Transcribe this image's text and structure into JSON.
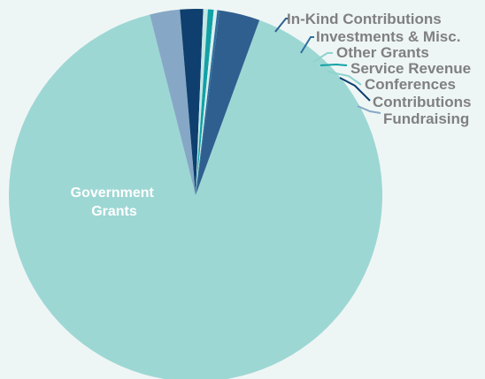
{
  "chart_data": {
    "type": "pie",
    "title": "",
    "start_angle_deg": 20,
    "slices": [
      {
        "label": "Government Grants",
        "value": 90.5,
        "color": "#9dd7d4"
      },
      {
        "label": "Fundraising",
        "value": 2.6,
        "color": "#86a8c6"
      },
      {
        "label": "Contributions",
        "value": 2.0,
        "color": "#0e3f6e"
      },
      {
        "label": "Conferences",
        "value": 0.4,
        "color": "#c2e7e4"
      },
      {
        "label": "Service Revenue",
        "value": 0.5,
        "color": "#11a1a6"
      },
      {
        "label": "Other Grants",
        "value": 0.3,
        "color": "#d9efee"
      },
      {
        "label": "Investments & Misc.",
        "value": 0.2,
        "color": "#2e6f9e"
      },
      {
        "label": "In-Kind Contributions",
        "value": 3.5,
        "color": "#2f5f8f"
      }
    ],
    "label_text_color": "#808080",
    "inner_label_color": "#ffffff",
    "inner_label_lines": [
      "Government",
      "Grants"
    ]
  }
}
